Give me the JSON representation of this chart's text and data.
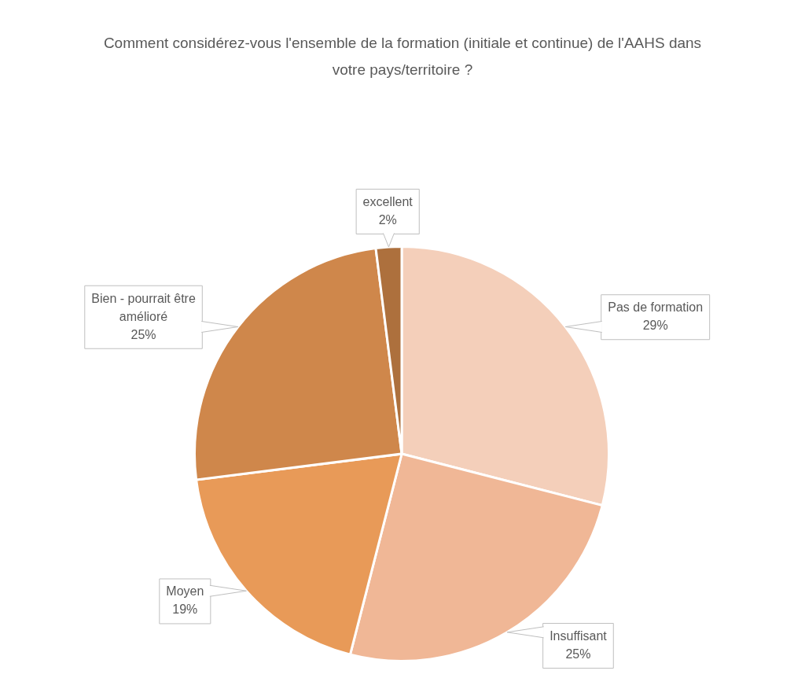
{
  "chart_data": {
    "type": "pie",
    "title": "Comment considérez-vous l'ensemble de la formation (initiale et continue) de l'AAHS dans votre pays/territoire ?",
    "categories": [
      "Pas de formation",
      "Insuffisant",
      "Moyen",
      "Bien - pourrait être amélioré",
      "excellent"
    ],
    "values": [
      29,
      25,
      19,
      25,
      2
    ],
    "value_labels": [
      "29%",
      "25%",
      "19%",
      "25%",
      "2%"
    ],
    "colors": [
      "#f4cfba",
      "#f0b796",
      "#e89a58",
      "#cf874b",
      "#ad703d"
    ]
  }
}
